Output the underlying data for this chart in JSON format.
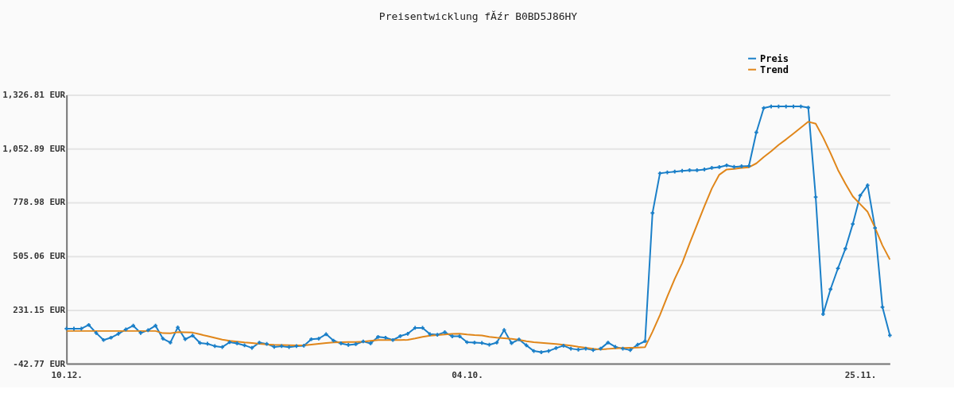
{
  "chart_data": {
    "type": "line",
    "title": "Preisentwicklung fĂźr B0BD5J86HY",
    "categories": [
      "10.12.",
      null,
      null,
      null,
      null,
      null,
      null,
      null,
      null,
      null,
      null,
      null,
      null,
      null,
      null,
      null,
      null,
      null,
      null,
      null,
      null,
      null,
      null,
      null,
      null,
      null,
      null,
      null,
      null,
      null,
      null,
      null,
      null,
      null,
      null,
      null,
      null,
      null,
      null,
      null,
      null,
      null,
      null,
      null,
      null,
      null,
      null,
      null,
      null,
      null,
      null,
      null,
      null,
      null,
      "04.10.",
      null,
      null,
      null,
      null,
      null,
      null,
      null,
      null,
      null,
      null,
      null,
      null,
      null,
      null,
      null,
      null,
      null,
      null,
      null,
      null,
      null,
      null,
      null,
      null,
      null,
      null,
      null,
      null,
      null,
      null,
      null,
      null,
      null,
      null,
      null,
      null,
      null,
      null,
      null,
      null,
      null,
      null,
      null,
      null,
      null,
      null,
      null,
      null,
      null,
      null,
      null,
      null,
      "25.11.",
      null,
      null,
      null,
      null
    ],
    "series": [
      {
        "name": "Preis",
        "color": "#1a7fc8",
        "marker": "cross",
        "values": [
          136,
          136,
          136,
          155,
          114,
          78,
          90,
          110,
          132,
          151,
          114,
          128,
          151,
          85,
          65,
          142,
          82,
          101,
          63,
          59,
          47,
          42,
          67,
          61,
          51,
          38,
          65,
          58,
          43,
          47,
          42,
          47,
          49,
          82,
          85,
          108,
          75,
          61,
          53,
          57,
          71,
          61,
          94,
          90,
          78,
          98,
          110,
          140,
          140,
          108,
          105,
          118,
          97,
          97,
          67,
          65,
          63,
          54,
          65,
          129,
          62,
          81,
          51,
          22,
          16,
          22,
          37,
          49,
          34,
          29,
          34,
          27,
          34,
          65,
          43,
          34,
          27,
          54,
          72,
          725,
          927,
          932,
          936,
          940,
          943,
          943,
          947,
          955,
          959,
          968,
          960,
          963,
          965,
          1136,
          1260,
          1268,
          1268,
          1268,
          1268,
          1268,
          1262,
          806,
          210,
          337,
          443,
          543,
          669,
          814,
          866,
          649,
          246,
          102
        ]
      },
      {
        "name": "Trend",
        "color": "#e0861a",
        "marker": "none",
        "values": [
          124,
          124,
          124,
          124,
          124,
          124,
          124,
          124,
          124,
          124,
          124,
          124,
          124,
          113,
          112,
          118,
          117,
          116,
          107,
          98,
          89,
          80,
          74,
          70,
          66,
          63,
          59,
          56,
          54,
          53,
          52,
          51,
          51,
          55,
          59,
          63,
          66,
          67,
          68,
          68,
          70,
          74,
          78,
          78,
          78,
          78,
          79,
          86,
          94,
          100,
          103,
          106,
          109,
          110,
          106,
          103,
          101,
          94,
          90,
          87,
          84,
          79,
          72,
          67,
          64,
          61,
          58,
          54,
          50,
          44,
          39,
          34,
          30,
          33,
          36,
          38,
          39,
          40,
          42,
          120,
          205,
          300,
          390,
          470,
          570,
          665,
          760,
          850,
          920,
          947,
          950,
          955,
          958,
          978,
          1010,
          1040,
          1072,
          1100,
          1130,
          1160,
          1190,
          1180,
          1110,
          1030,
          945,
          875,
          810,
          770,
          731,
          650,
          560,
          488
        ]
      }
    ],
    "ylim": [
      -42.77,
      1326.81
    ],
    "yticks": [
      {
        "value": -42.77,
        "label": "-42.77 EUR"
      },
      {
        "value": 231.15,
        "label": "231.15 EUR"
      },
      {
        "value": 505.06,
        "label": "505.06 EUR"
      },
      {
        "value": 778.98,
        "label": "778.98 EUR"
      },
      {
        "value": 1052.89,
        "label": "1,052.89 EUR"
      },
      {
        "value": 1326.81,
        "label": "1,326.81 EUR"
      }
    ],
    "grid": "y",
    "legend": "top right"
  }
}
